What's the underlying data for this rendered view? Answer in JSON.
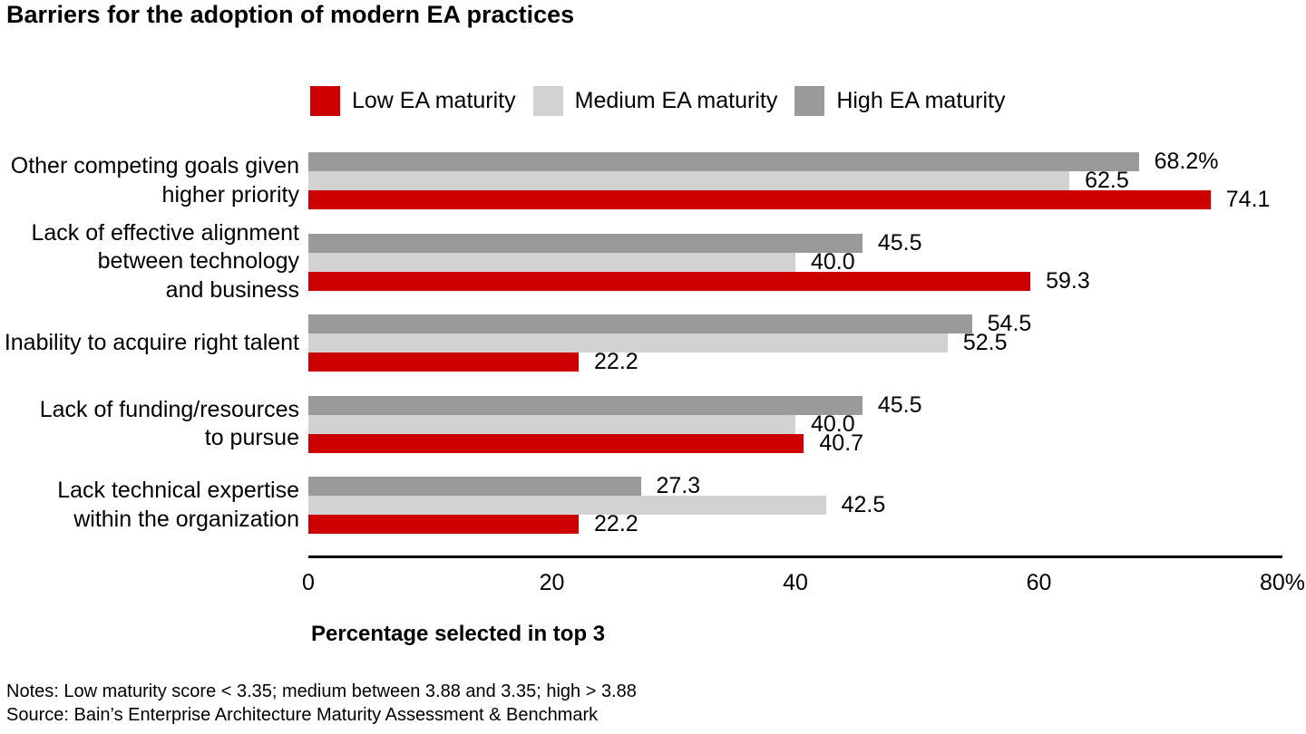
{
  "title": "Barriers for the adoption of modern EA practices",
  "notes": "Notes: Low maturity score < 3.35; medium between 3.88 and 3.35; high > 3.88",
  "source": "Source: Bain’s Enterprise Architecture Maturity Assessment & Benchmark",
  "colors": {
    "low": "#cc0000",
    "medium": "#d2d2d2",
    "high": "#9a9a9a",
    "axis": "#000000",
    "text": "#000000"
  },
  "chart_data": {
    "type": "bar",
    "orientation": "horizontal",
    "title": "Barriers for the adoption of modern EA practices",
    "xlabel": "Percentage selected in top 3",
    "ylabel": "",
    "xlim": [
      0,
      80
    ],
    "grid": false,
    "legend_position": "top",
    "x_ticks": [
      {
        "value": 0,
        "label": "0"
      },
      {
        "value": 20,
        "label": "20"
      },
      {
        "value": 40,
        "label": "40"
      },
      {
        "value": 60,
        "label": "60"
      },
      {
        "value": 80,
        "label": "80%"
      }
    ],
    "legend": [
      {
        "label": "Low EA maturity",
        "color": "#cc0000"
      },
      {
        "label": "Medium EA maturity",
        "color": "#d2d2d2"
      },
      {
        "label": "High EA maturity",
        "color": "#9a9a9a"
      }
    ],
    "categories": [
      "Other competing goals given\nhigher priority",
      "Lack of effective alignment\nbetween technology\nand business",
      "Inability to acquire right talent",
      "Lack of funding/resources\nto pursue",
      "Lack technical expertise\nwithin the organization"
    ],
    "series_display_order": "top-to-bottom",
    "series": [
      {
        "name": "High EA maturity",
        "color": "#9a9a9a",
        "values": [
          68.2,
          45.5,
          54.5,
          45.5,
          27.3
        ],
        "labels": [
          "68.2%",
          "45.5",
          "54.5",
          "45.5",
          "27.3"
        ]
      },
      {
        "name": "Medium EA maturity",
        "color": "#d2d2d2",
        "values": [
          62.5,
          40.0,
          52.5,
          40.0,
          42.5
        ],
        "labels": [
          "62.5",
          "40.0",
          "52.5",
          "40.0",
          "42.5"
        ]
      },
      {
        "name": "Low EA maturity",
        "color": "#cc0000",
        "values": [
          74.1,
          59.3,
          22.2,
          40.7,
          22.2
        ],
        "labels": [
          "74.1",
          "59.3",
          "22.2",
          "40.7",
          "22.2"
        ]
      }
    ]
  }
}
